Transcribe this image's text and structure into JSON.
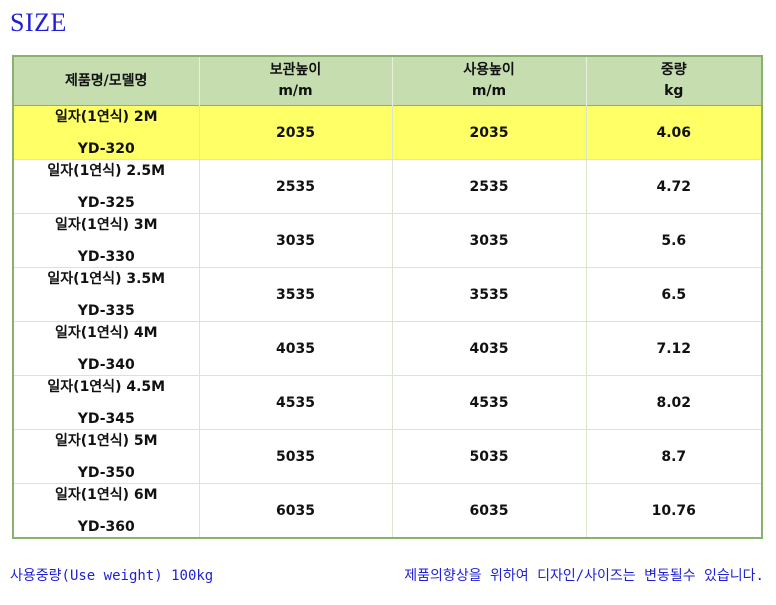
{
  "title": "SIZE",
  "table": {
    "headers": [
      {
        "line1": "제품명/모델명",
        "line2": ""
      },
      {
        "line1": "보관높이",
        "line2": "m/m"
      },
      {
        "line1": "사용높이",
        "line2": "m/m"
      },
      {
        "line1": "중량",
        "line2": "kg"
      }
    ],
    "rows": [
      {
        "name": "일자(1연식)  2M",
        "code": "YD-320",
        "storage": "2035",
        "usage": "2035",
        "weight": "4.06",
        "highlight": true
      },
      {
        "name": "일자(1연식)  2.5M",
        "code": "YD-325",
        "storage": "2535",
        "usage": "2535",
        "weight": "4.72",
        "highlight": false
      },
      {
        "name": "일자(1연식)  3M",
        "code": "YD-330",
        "storage": "3035",
        "usage": "3035",
        "weight": "5.6",
        "highlight": false
      },
      {
        "name": "일자(1연식)  3.5M",
        "code": "YD-335",
        "storage": "3535",
        "usage": "3535",
        "weight": "6.5",
        "highlight": false
      },
      {
        "name": "일자(1연식)  4M",
        "code": "YD-340",
        "storage": "4035",
        "usage": "4035",
        "weight": "7.12",
        "highlight": false
      },
      {
        "name": "일자(1연식)  4.5M",
        "code": "YD-345",
        "storage": "4535",
        "usage": "4535",
        "weight": "8.02",
        "highlight": false
      },
      {
        "name": "일자(1연식)  5M",
        "code": "YD-350",
        "storage": "5035",
        "usage": "5035",
        "weight": "8.7",
        "highlight": false
      },
      {
        "name": "일자(1연식)  6M",
        "code": "YD-360",
        "storage": "6035",
        "usage": "6035",
        "weight": "10.76",
        "highlight": false
      }
    ]
  },
  "footer": {
    "left": "사용중량(Use weight) 100kg",
    "right": "제품의향상을 위하여 디자인/사이즈는 변동될수 있습니다."
  },
  "colors": {
    "title": "#1f1fd6",
    "header_bg": "#c6ddb0",
    "highlight_bg": "#ffff66",
    "border": "#8bb070"
  }
}
